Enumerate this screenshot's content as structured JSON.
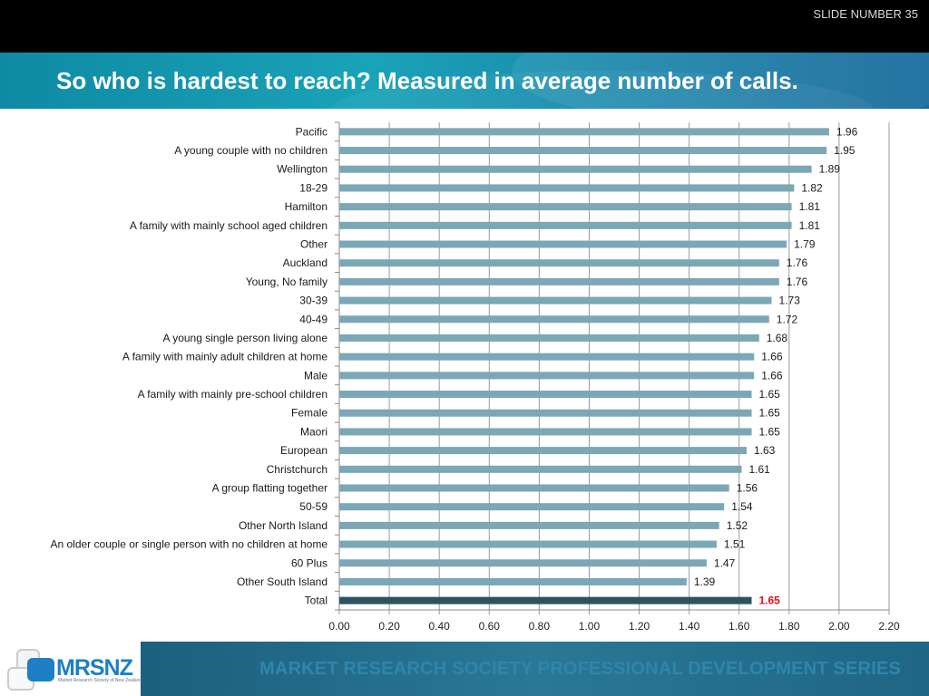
{
  "slide_number": "SLIDE NUMBER 35",
  "title": "So who is hardest to reach? Measured in average number of calls.",
  "footer_text": "MARKET RESEARCH SOCIETY PROFESSIONAL DEVELOPMENT SERIES",
  "logo": {
    "wordmark": "MRSNZ",
    "tagline": "Market Research Society of New Zealand"
  },
  "colors": {
    "bar": "#7ba7b6",
    "total_bar": "#2f5260",
    "total_label": "#e0101a",
    "grid": "#9a9a9a"
  },
  "chart_data": {
    "type": "bar",
    "orientation": "horizontal",
    "categories": [
      "Pacific",
      "A young couple with no children",
      "Wellington",
      "18-29",
      "Hamilton",
      "A family with mainly school aged children",
      "Other",
      "Auckland",
      "Young, No family",
      "30-39",
      "40-49",
      "A young single person living alone",
      "A family with mainly adult children at home",
      "Male",
      "A family with mainly pre-school children",
      "Female",
      "Maori",
      "European",
      "Christchurch",
      "A group flatting together",
      "50-59",
      "Other North Island",
      "An older couple or single person with no children at home",
      "60 Plus",
      "Other South Island",
      "Total"
    ],
    "values": [
      1.96,
      1.95,
      1.89,
      1.82,
      1.81,
      1.81,
      1.79,
      1.76,
      1.76,
      1.73,
      1.72,
      1.68,
      1.66,
      1.66,
      1.65,
      1.65,
      1.65,
      1.63,
      1.61,
      1.56,
      1.54,
      1.52,
      1.51,
      1.47,
      1.39,
      1.65
    ],
    "value_labels": [
      "1.96",
      "1.95",
      "1.89",
      "1.82",
      "1.81",
      "1.81",
      "1.79",
      "1.76",
      "1.76",
      "1.73",
      "1.72",
      "1.68",
      "1.66",
      "1.66",
      "1.65",
      "1.65",
      "1.65",
      "1.63",
      "1.61",
      "1.56",
      "1.54",
      "1.52",
      "1.51",
      "1.47",
      "1.39",
      "1.65"
    ],
    "xlim": [
      0,
      2.2
    ],
    "xticks": [
      "0.00",
      "0.20",
      "0.40",
      "0.60",
      "0.80",
      "1.00",
      "1.20",
      "1.40",
      "1.60",
      "1.80",
      "2.00",
      "2.20"
    ],
    "grid": true,
    "highlight_category": "Total"
  }
}
